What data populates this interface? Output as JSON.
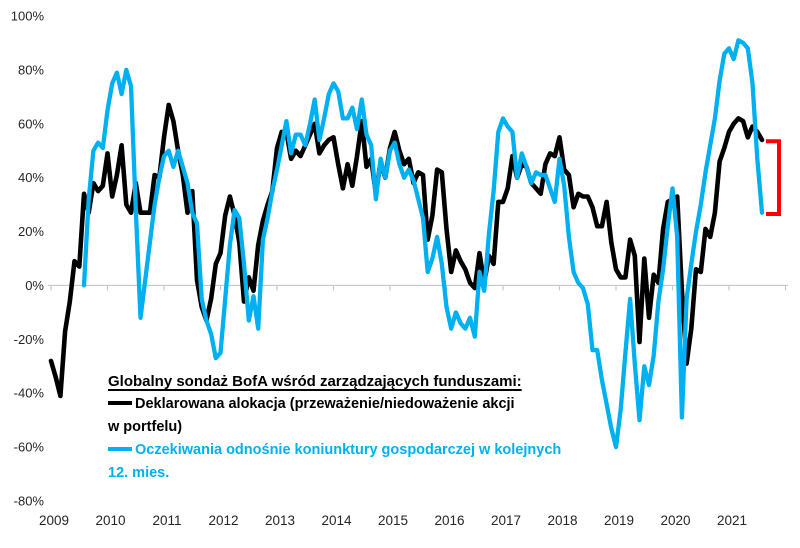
{
  "chart_data": {
    "type": "line",
    "x_tick_labels": [
      "2009",
      "2010",
      "2011",
      "2012",
      "2013",
      "2014",
      "2015",
      "2016",
      "2017",
      "2018",
      "2019",
      "2020",
      "2021"
    ],
    "y_tick_labels": [
      "100%",
      "80%",
      "60%",
      "40%",
      "20%",
      "0%",
      "-20%",
      "-40%",
      "-60%",
      "-80%"
    ],
    "ylim": [
      -80,
      100
    ],
    "x_range": [
      "2009-01",
      "2021-08"
    ],
    "grid": "single horizontal line at 0% only",
    "legend_position": "inside plot, lower middle",
    "axis_color": "#c8c8c8",
    "label_color": "#262626",
    "series": [
      {
        "name": "Deklarowana alokacja (przeważenie/niedoważenie akcji w portfelu)",
        "color": "#000000",
        "start_index": 0,
        "start_month": "2009-01",
        "values": [
          -28,
          -34,
          -41,
          -17,
          -6,
          9,
          7,
          34,
          27,
          38,
          35,
          37,
          49,
          33,
          41,
          52,
          30,
          27,
          38,
          27,
          27,
          27,
          41,
          40,
          55,
          67,
          61,
          50,
          41,
          27,
          35,
          2,
          -8,
          -13,
          -5,
          8,
          12,
          26,
          33,
          26,
          16,
          -6,
          3,
          -2,
          15,
          24,
          30,
          35,
          51,
          57,
          57,
          47,
          50,
          48,
          52,
          56,
          60,
          49,
          52,
          54,
          55,
          45,
          36,
          45,
          37,
          48,
          61,
          44,
          47,
          34,
          46,
          40,
          51,
          57,
          50,
          45,
          47,
          38,
          42,
          41,
          17,
          26,
          43,
          42,
          21,
          5,
          13,
          9,
          6,
          1,
          -1,
          12,
          1,
          11,
          8,
          31,
          31,
          36,
          48,
          40,
          45,
          44,
          38,
          36,
          34,
          45,
          49,
          48,
          55,
          43,
          41,
          29,
          34,
          33,
          33,
          29,
          22,
          22,
          31,
          16,
          6,
          3,
          3,
          17,
          11,
          -21,
          10,
          -12,
          4,
          1,
          21,
          31,
          32,
          33,
          -2,
          -29,
          -16,
          6,
          5,
          21,
          18,
          27,
          46,
          51,
          57,
          60,
          62,
          61,
          55,
          59,
          57,
          54
        ]
      },
      {
        "name": "Oczekiwania odnośnie koniunktury gospodarczej w kolejnych 12. mies.",
        "color": "#00B0F0",
        "start_index": 7,
        "start_month": "2009-08",
        "values": [
          0,
          32,
          50,
          53,
          51,
          65,
          75,
          79,
          71,
          80,
          74,
          28,
          -12,
          2,
          16,
          30,
          40,
          48,
          50,
          44,
          50,
          44,
          38,
          27,
          23,
          -5,
          -13,
          -18,
          -27,
          -25,
          -5,
          15,
          28,
          25,
          8,
          -13,
          -4,
          -16,
          17,
          25,
          35,
          43,
          52,
          61,
          49,
          56,
          56,
          52,
          60,
          69,
          54,
          62,
          71,
          75,
          72,
          62,
          62,
          66,
          58,
          69,
          56,
          52,
          32,
          47,
          40,
          50,
          53,
          45,
          40,
          43,
          39,
          32,
          25,
          5,
          10,
          18,
          8,
          -8,
          -16,
          -10,
          -14,
          -16,
          -12,
          -19,
          5,
          -2,
          19,
          35,
          57,
          62,
          59,
          57,
          40,
          49,
          44,
          38,
          42,
          41,
          41,
          36,
          31,
          47,
          37,
          18,
          5,
          1,
          -1,
          -7,
          -24,
          -24,
          -35,
          -44,
          -53,
          -60,
          -46,
          -25,
          -5,
          -29,
          -50,
          -30,
          -37,
          -26,
          -6,
          6,
          22,
          36,
          18,
          -49,
          -5,
          8,
          20,
          30,
          42,
          52,
          62,
          76,
          86,
          88,
          84,
          91,
          90,
          88,
          75,
          47,
          27
        ]
      }
    ],
    "end_bracket": {
      "color": "#FF0000",
      "top_value": 53.5,
      "bottom_value": 26.5,
      "meaning": "marks gap between the two series' final values"
    }
  },
  "legend": {
    "title": "Globalny sondaż BofA wśród zarządzających funduszami:",
    "items": [
      {
        "line1": "Deklarowana alokacja (przeważenie/niedoważenie akcji",
        "line2": "w portfelu)",
        "color": "#000000"
      },
      {
        "line1": "Oczekiwania odnośnie koniunktury gospodarczej w kolejnych",
        "line2": "12. mies.",
        "color": "#00B0F0"
      }
    ]
  }
}
